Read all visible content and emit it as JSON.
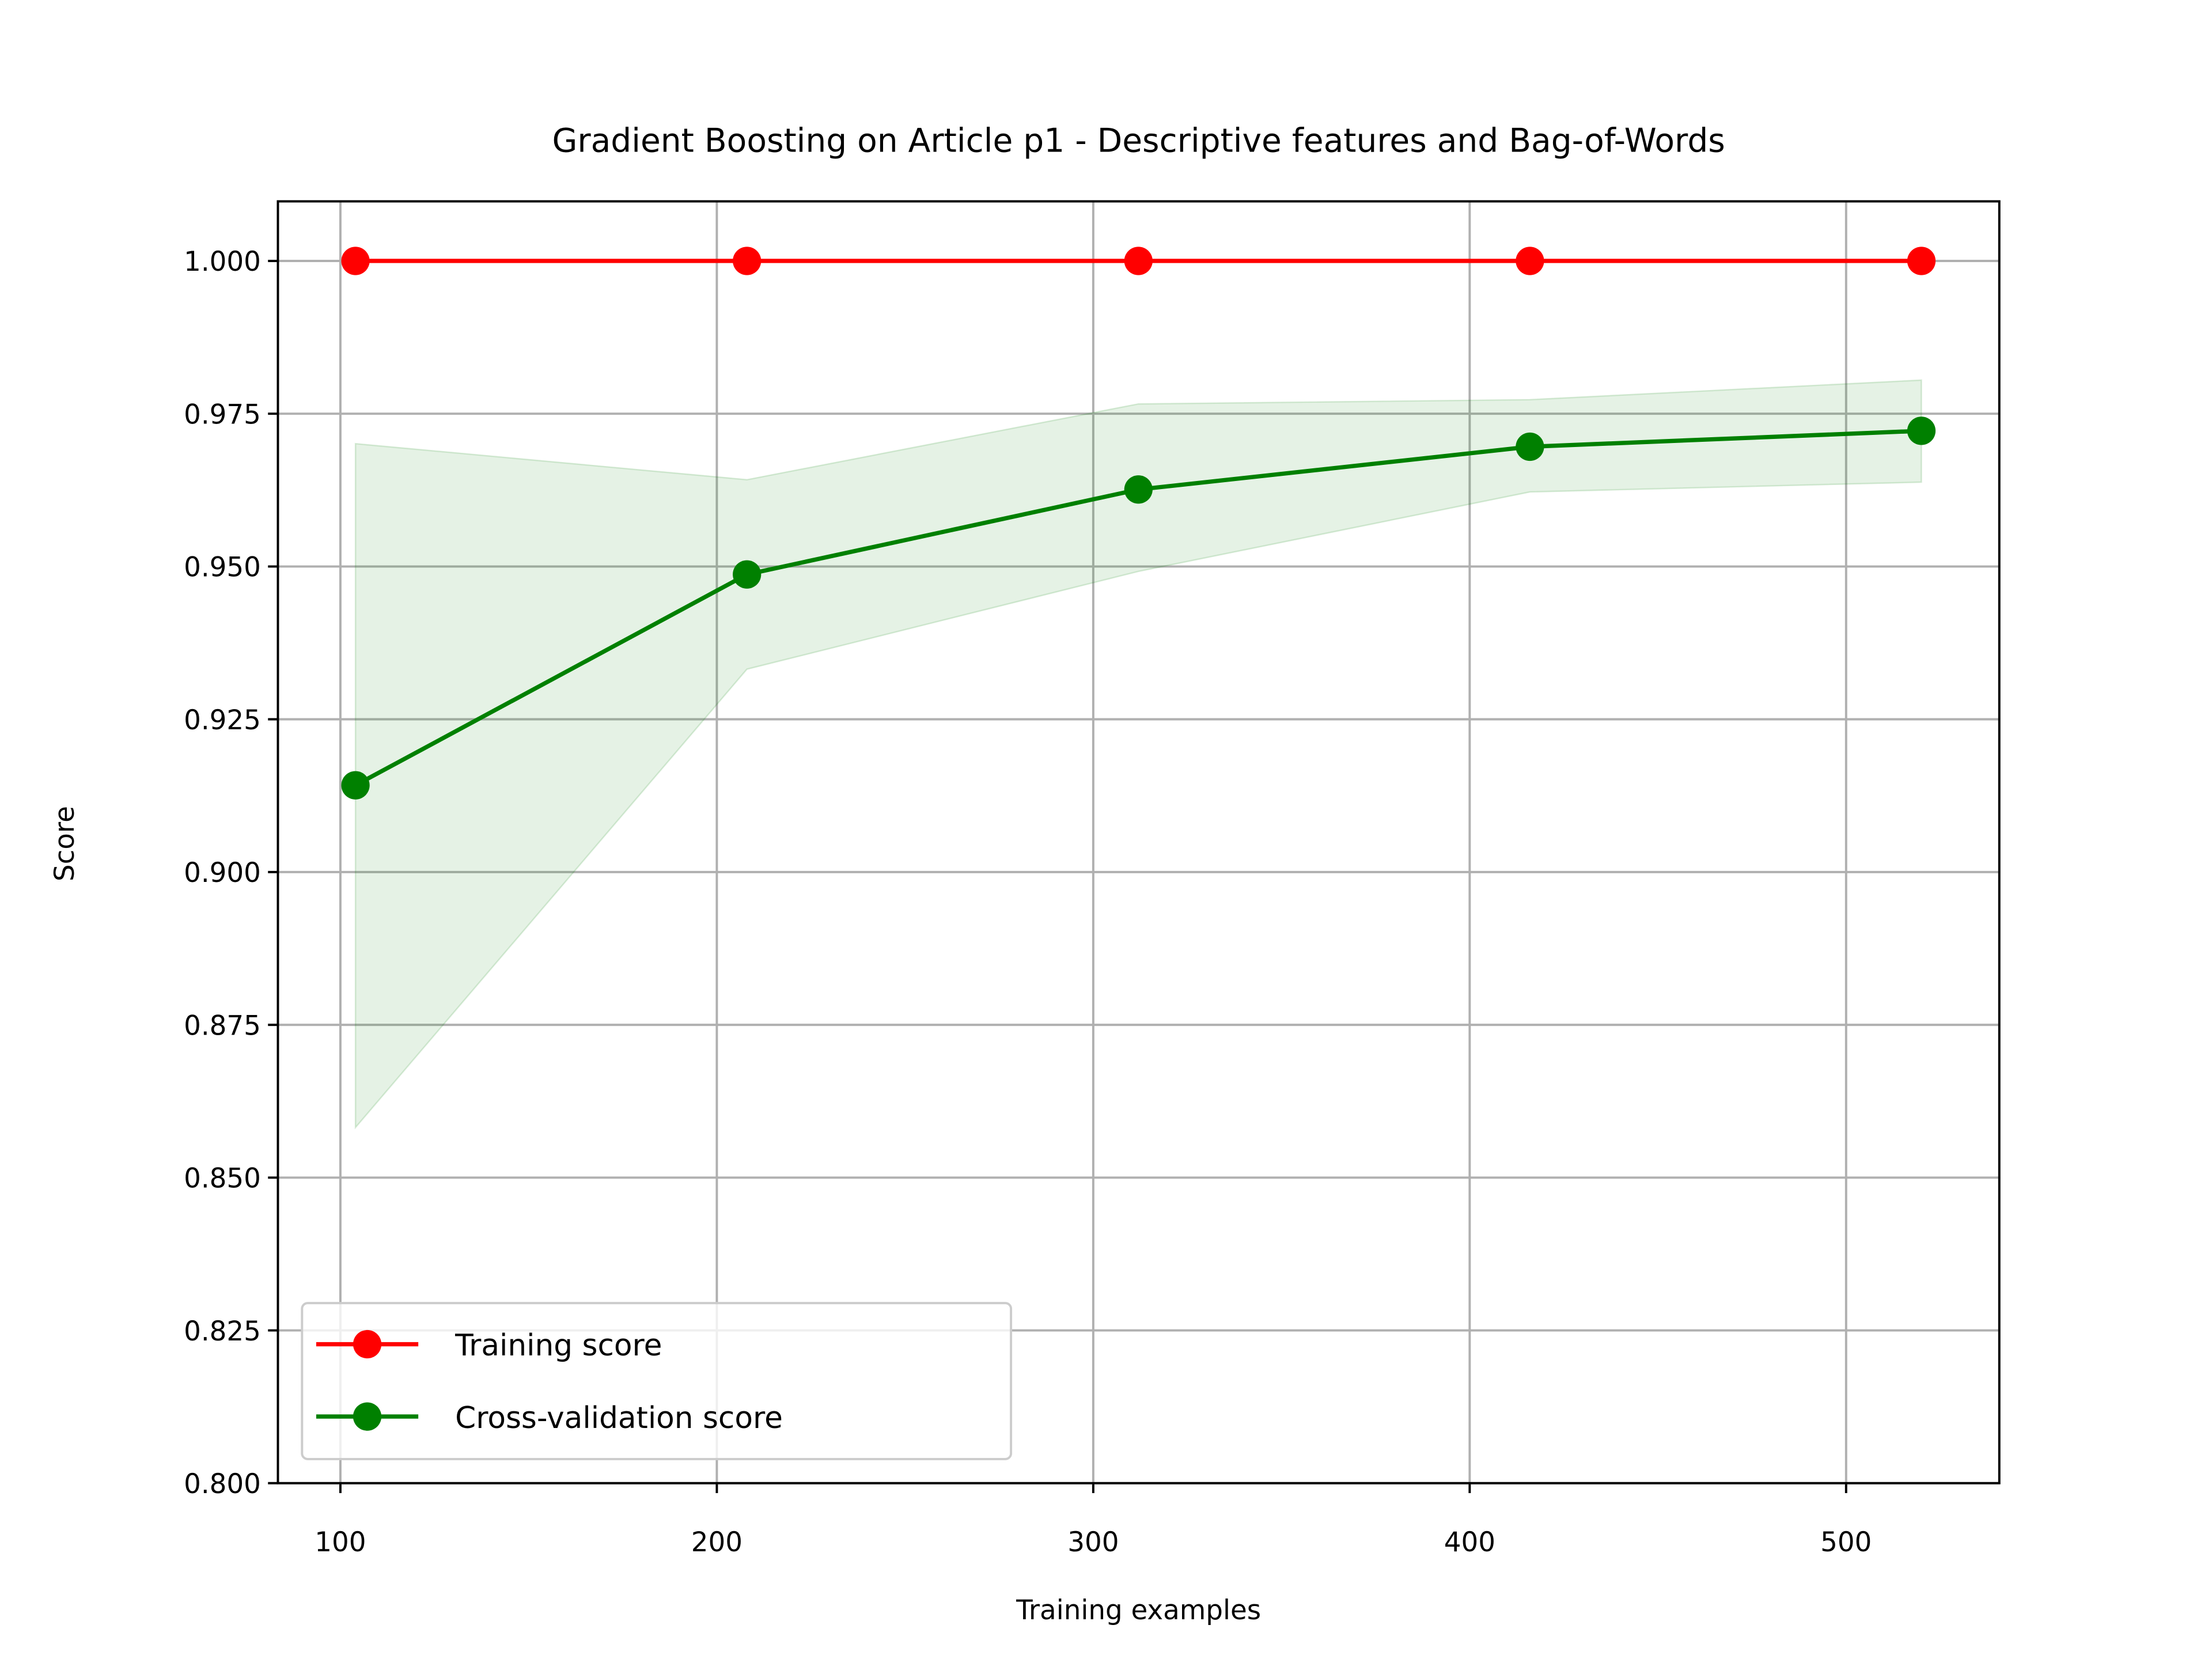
{
  "chart_data": {
    "type": "line",
    "title": "Gradient Boosting on Article p1 - Descriptive features and Bag-of-Words",
    "x_label": "Training examples",
    "y_label": "Score",
    "x": [
      104,
      208,
      312,
      416,
      520
    ],
    "series": [
      {
        "name": "Training score",
        "color": "#ff0000",
        "values": [
          1.0,
          1.0,
          1.0,
          1.0,
          1.0
        ]
      },
      {
        "name": "Cross-validation score",
        "color": "#008000",
        "values": [
          0.9142,
          0.9487,
          0.9626,
          0.9696,
          0.9722
        ],
        "band": {
          "upper": [
            0.9701,
            0.9642,
            0.9766,
            0.9773,
            0.9805
          ],
          "lower": [
            0.8582,
            0.9332,
            0.9492,
            0.9622,
            0.9638
          ],
          "color": "#008000",
          "opacity": 0.1
        }
      }
    ],
    "xlim": [
      83.4,
      540.7
    ],
    "ylim": [
      0.8,
      1.00975
    ],
    "xticks": [
      100,
      200,
      300,
      400,
      500
    ],
    "yticks": [
      {
        "value": 0.8,
        "label": "0.800"
      },
      {
        "value": 0.825,
        "label": "0.825"
      },
      {
        "value": 0.85,
        "label": "0.850"
      },
      {
        "value": 0.875,
        "label": "0.875"
      },
      {
        "value": 0.9,
        "label": "0.900"
      },
      {
        "value": 0.925,
        "label": "0.925"
      },
      {
        "value": 0.95,
        "label": "0.950"
      },
      {
        "value": 0.975,
        "label": "0.975"
      },
      {
        "value": 1.0,
        "label": "1.000"
      }
    ],
    "grid": true,
    "legend": "lower left"
  }
}
